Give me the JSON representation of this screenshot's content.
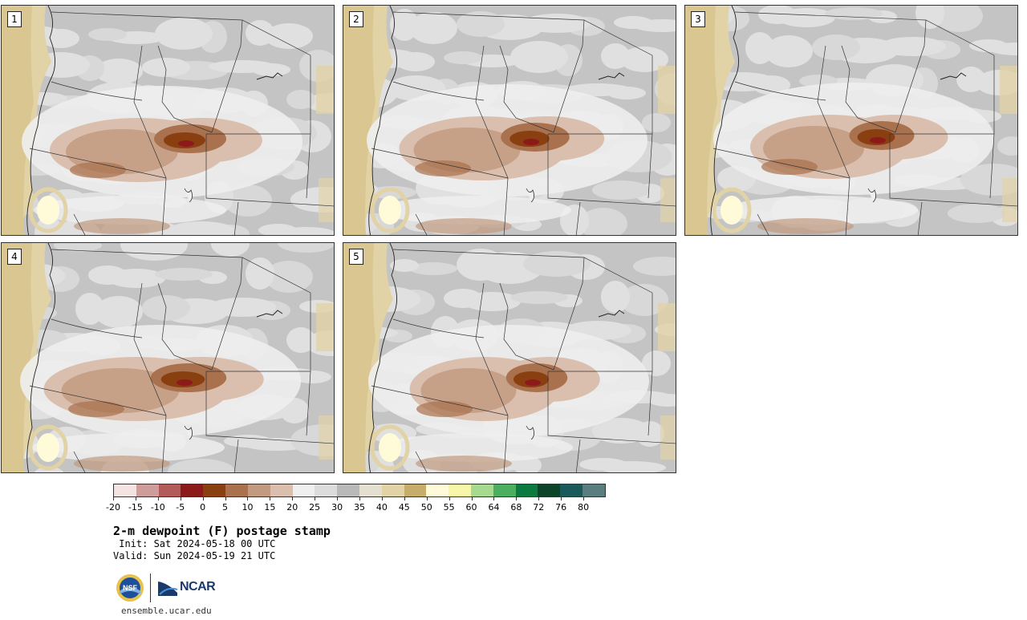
{
  "panels": [
    {
      "label": "1"
    },
    {
      "label": "2"
    },
    {
      "label": "3"
    },
    {
      "label": "4"
    },
    {
      "label": "5"
    }
  ],
  "colorbar": {
    "colors": [
      "#f3e3e3",
      "#cf9c9c",
      "#b35b5b",
      "#8c1a1a",
      "#8a3f10",
      "#a9714d",
      "#c29a80",
      "#dbbfae",
      "#efefef",
      "#dcdcdc",
      "#b9b9b9",
      "#e3e0d1",
      "#e2d3a6",
      "#c6ad6b",
      "#fffbd9",
      "#f8f6a8",
      "#a6da8e",
      "#4caf5f",
      "#0a7a3e",
      "#0d4429",
      "#1b5a5a",
      "#5a7e80"
    ],
    "tick_labels": [
      "-20",
      "-15",
      "-10",
      "-5",
      "0",
      "5",
      "10",
      "15",
      "20",
      "25",
      "30",
      "35",
      "40",
      "45",
      "50",
      "55",
      "60",
      "64",
      "68",
      "72",
      "76",
      "80"
    ]
  },
  "title": "2-m dewpoint (F) postage stamp",
  "init": " Init: Sat 2024-05-18 00 UTC",
  "valid": "Valid: Sun 2024-05-19 21 UTC",
  "logos": {
    "nsf": "NSF",
    "ncar": "NCAR"
  },
  "site": "ensemble.ucar.edu"
}
